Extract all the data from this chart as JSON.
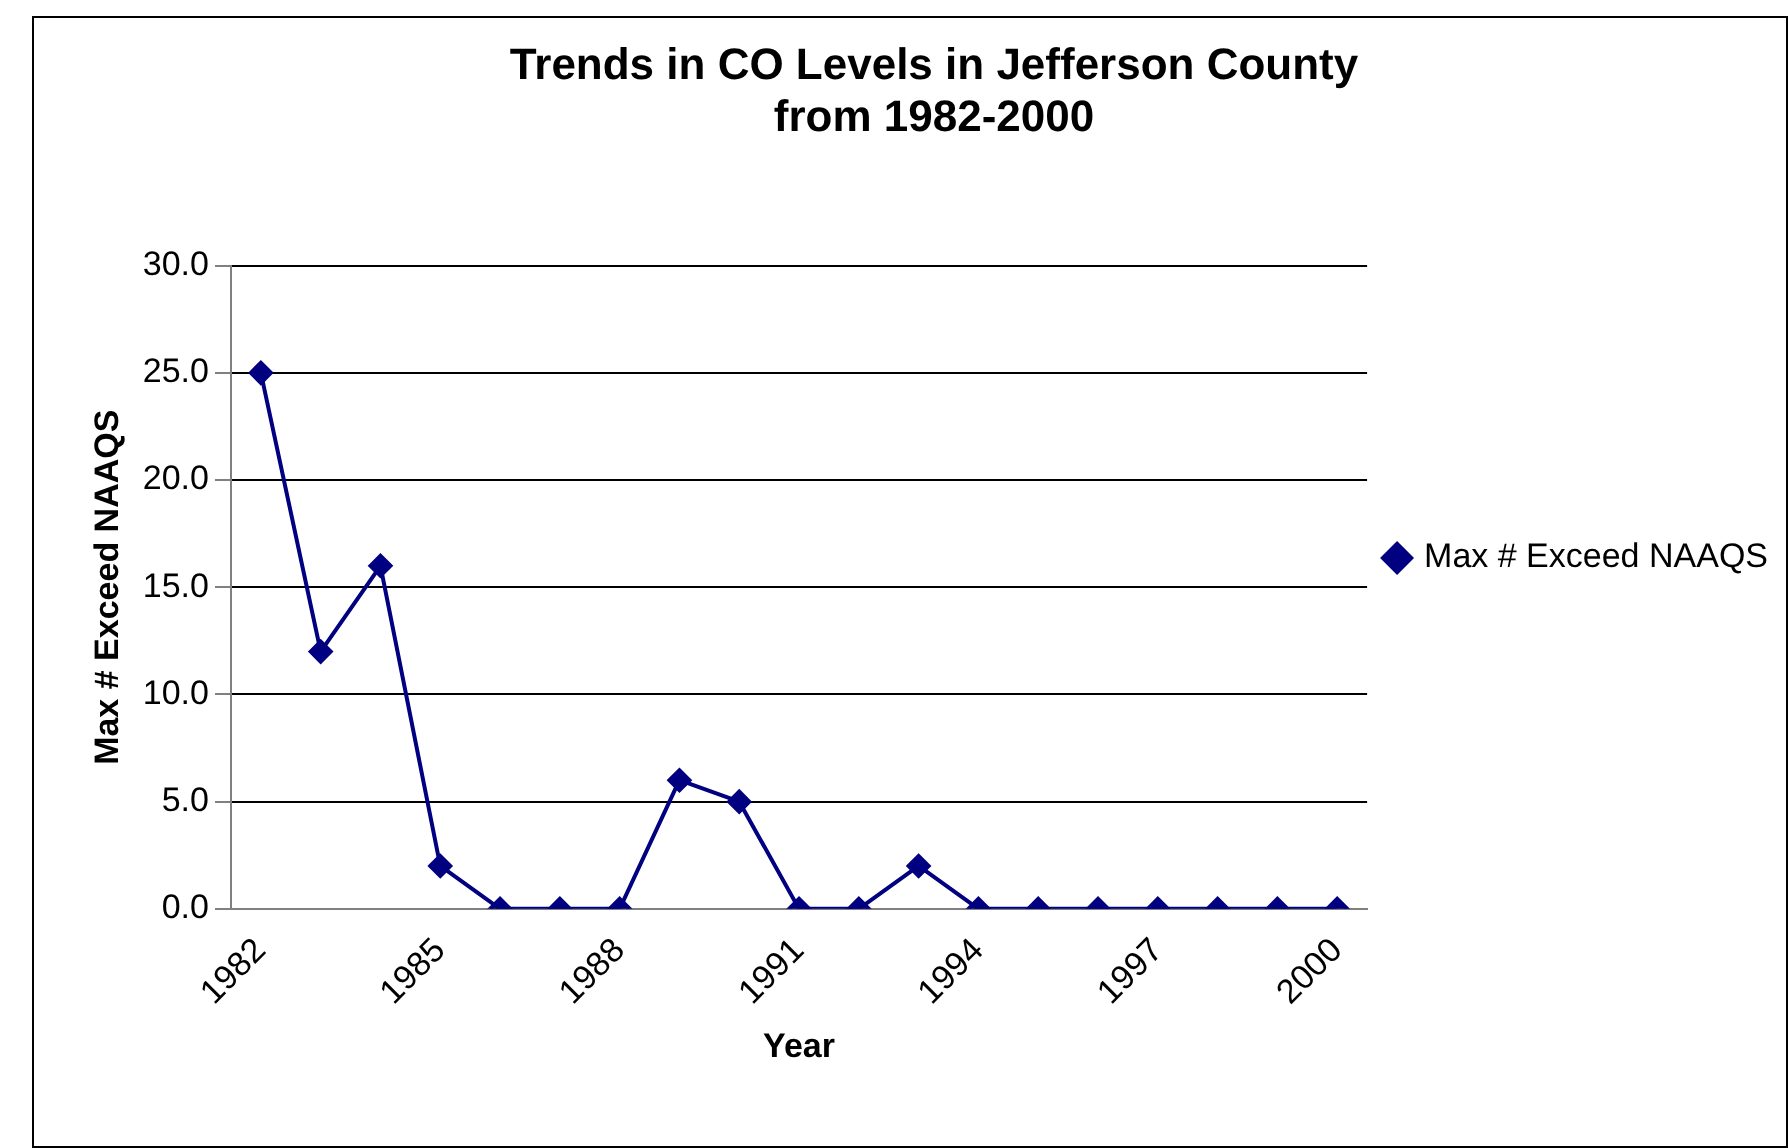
{
  "chart_data": {
    "type": "line",
    "title": "Trends in CO Levels in Jefferson County\nfrom 1982-2000",
    "xlabel": "Year",
    "ylabel": "Max # Exceed NAAQS",
    "categories": [
      "1982",
      null,
      null,
      "1985",
      null,
      null,
      "1988",
      null,
      null,
      "1991",
      null,
      null,
      "1994",
      null,
      null,
      "1997",
      null,
      null,
      "2000"
    ],
    "series": [
      {
        "name": "Max # Exceed NAAQS",
        "color": "#000080",
        "values": [
          25,
          12,
          16,
          2,
          0,
          0,
          0,
          6,
          5,
          0,
          0,
          2,
          0,
          0,
          0,
          0,
          0,
          0,
          0
        ]
      }
    ],
    "ylim": [
      0,
      30
    ],
    "yticks": [
      {
        "value": 0,
        "label": "0.0"
      },
      {
        "value": 5,
        "label": "5.0"
      },
      {
        "value": 10,
        "label": "10.0"
      },
      {
        "value": 15,
        "label": "15.0"
      },
      {
        "value": 20,
        "label": "20.0"
      },
      {
        "value": 25,
        "label": "25.0"
      },
      {
        "value": 30,
        "label": "30.0"
      }
    ],
    "grid": "y",
    "legend": "right",
    "marker": "diamond",
    "line_style": "solid"
  }
}
